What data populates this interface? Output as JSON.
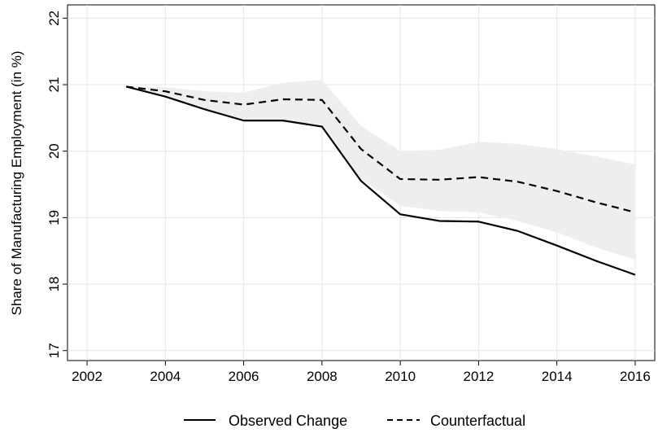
{
  "chart_data": {
    "type": "line",
    "title": "",
    "xlabel": "",
    "ylabel": "Share of Manufacturing Employment (in %)",
    "xlim": [
      2001.5,
      2016.5
    ],
    "ylim": [
      16.85,
      22.2
    ],
    "x_ticks": [
      2002,
      2004,
      2006,
      2008,
      2010,
      2012,
      2014,
      2016
    ],
    "x_tick_labels": [
      "2002",
      "2004",
      "2006",
      "2008",
      "2010",
      "2012",
      "2014",
      "2016"
    ],
    "y_ticks": [
      17,
      18,
      19,
      20,
      21,
      22
    ],
    "y_tick_labels": [
      "17",
      "18",
      "19",
      "20",
      "21",
      "22"
    ],
    "grid": true,
    "legend_position": "bottom",
    "x": [
      2003,
      2004,
      2005,
      2006,
      2007,
      2008,
      2009,
      2010,
      2011,
      2012,
      2013,
      2014,
      2015,
      2016
    ],
    "series": [
      {
        "name": "Observed Change",
        "style": "solid",
        "color": "#000000",
        "values": [
          20.97,
          20.82,
          20.63,
          20.46,
          20.46,
          20.37,
          19.55,
          19.05,
          18.95,
          18.94,
          18.8,
          18.58,
          18.35,
          18.14
        ]
      },
      {
        "name": "Counterfactual",
        "style": "dashed",
        "color": "#000000",
        "values": [
          20.97,
          20.9,
          20.77,
          20.7,
          20.78,
          20.77,
          20.03,
          19.58,
          19.57,
          19.61,
          19.54,
          19.4,
          19.23,
          19.08
        ]
      }
    ],
    "band": {
      "color": "#eeeeee",
      "lower": [
        20.97,
        20.82,
        20.63,
        20.46,
        20.45,
        20.4,
        19.58,
        19.18,
        19.1,
        19.08,
        18.95,
        18.78,
        18.55,
        18.37
      ],
      "upper": [
        20.97,
        20.96,
        20.9,
        20.88,
        21.03,
        21.07,
        20.38,
        20.0,
        20.02,
        20.14,
        20.11,
        20.03,
        19.92,
        19.8
      ]
    }
  }
}
